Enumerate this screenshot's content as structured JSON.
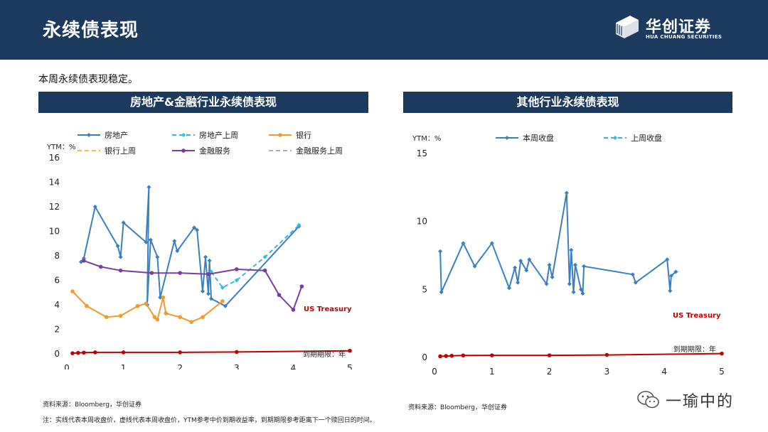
{
  "header": {
    "title": "永续债表现"
  },
  "logo": {
    "name_cn": "华创证券",
    "name_en": "HUA CHUANG SECURITIES"
  },
  "subtitle": "本周永续债表现稳定。",
  "colors": {
    "header_bg": "#1b3a5e",
    "treasury": "#c00000"
  },
  "chart_data": [
    {
      "type": "line",
      "title": "房地产&金融行业永续债表现",
      "ylabel": "YTM：%",
      "xlabel": "到期期限：年",
      "xlim": [
        0,
        5
      ],
      "ylim": [
        0,
        16
      ],
      "xticks": [
        0,
        1,
        2,
        3,
        4,
        5
      ],
      "yticks": [
        0,
        2,
        4,
        6,
        8,
        10,
        12,
        14,
        16
      ],
      "grid": false,
      "legend_position": "top",
      "annotation": "US Treasury",
      "series": [
        {
          "name": "房地产",
          "style": "solid",
          "color": "#3a7fc1",
          "marker": "diamond",
          "points": [
            [
              0.25,
              7.5
            ],
            [
              0.3,
              7.8
            ],
            [
              0.5,
              12.0
            ],
            [
              0.9,
              8.8
            ],
            [
              0.95,
              7.9
            ],
            [
              1.0,
              10.7
            ],
            [
              1.4,
              9.1
            ],
            [
              1.45,
              13.6
            ],
            [
              1.42,
              4.0
            ],
            [
              1.48,
              9.3
            ],
            [
              1.6,
              7.9
            ],
            [
              1.65,
              4.6
            ],
            [
              1.9,
              9.2
            ],
            [
              1.95,
              8.4
            ],
            [
              2.25,
              10.3
            ],
            [
              2.3,
              10.1
            ],
            [
              2.4,
              5.1
            ],
            [
              2.45,
              7.9
            ],
            [
              2.5,
              4.9
            ],
            [
              2.52,
              7.6
            ],
            [
              2.55,
              4.5
            ],
            [
              2.8,
              3.9
            ],
            [
              4.1,
              10.4
            ]
          ]
        },
        {
          "name": "房地产上周",
          "style": "dashed",
          "color": "#39b6e8",
          "marker": "diamond",
          "points": [
            [
              2.55,
              6.7
            ],
            [
              2.75,
              5.4
            ],
            [
              3.0,
              6.0
            ],
            [
              3.5,
              7.9
            ],
            [
              4.1,
              10.5
            ]
          ]
        },
        {
          "name": "银行",
          "style": "solid",
          "color": "#f29a2e",
          "marker": "circle",
          "points": [
            [
              0.1,
              5.1
            ],
            [
              0.35,
              3.9
            ],
            [
              0.7,
              3.0
            ],
            [
              0.95,
              3.1
            ],
            [
              1.25,
              3.9
            ],
            [
              1.4,
              4.1
            ],
            [
              1.55,
              3.0
            ],
            [
              1.6,
              2.8
            ],
            [
              1.7,
              4.6
            ],
            [
              1.75,
              3.3
            ],
            [
              2.0,
              3.0
            ],
            [
              2.2,
              2.6
            ],
            [
              2.4,
              3.0
            ],
            [
              2.75,
              4.3
            ]
          ]
        },
        {
          "name": "银行上周",
          "style": "dashed",
          "color": "#f7c325",
          "marker": "none",
          "points": []
        },
        {
          "name": "金融服务",
          "style": "solid",
          "color": "#7a3ea0",
          "marker": "circle",
          "points": [
            [
              0.3,
              7.6
            ],
            [
              0.6,
              7.1
            ],
            [
              0.95,
              6.8
            ],
            [
              1.5,
              6.6
            ],
            [
              2.0,
              6.6
            ],
            [
              2.5,
              6.5
            ],
            [
              3.0,
              6.9
            ],
            [
              3.5,
              6.8
            ],
            [
              3.75,
              4.8
            ],
            [
              4.0,
              3.6
            ],
            [
              4.15,
              5.5
            ]
          ]
        },
        {
          "name": "金融服务上周",
          "style": "dashed",
          "color": "#b0b0b0",
          "marker": "none",
          "points": []
        },
        {
          "name": "",
          "style": "solid",
          "color": "#c00000",
          "marker": "circle",
          "legend": false,
          "points": [
            [
              0.1,
              0.05
            ],
            [
              0.2,
              0.08
            ],
            [
              0.3,
              0.1
            ],
            [
              0.5,
              0.12
            ],
            [
              1.0,
              0.12
            ],
            [
              2.0,
              0.12
            ],
            [
              3.0,
              0.15
            ],
            [
              5.0,
              0.25
            ]
          ]
        }
      ]
    },
    {
      "type": "line",
      "title": "其他行业永续债表现",
      "ylabel": "YTM：%",
      "xlabel": "到期期限：年",
      "xlim": [
        0,
        5
      ],
      "ylim": [
        0,
        15
      ],
      "xticks": [
        0,
        1,
        2,
        3,
        4,
        5
      ],
      "yticks": [
        0,
        5,
        10,
        15
      ],
      "grid": false,
      "legend_position": "top",
      "annotation": "US Treasury",
      "series": [
        {
          "name": "本周收盘",
          "style": "solid",
          "color": "#3a7fc1",
          "marker": "diamond",
          "points": [
            [
              0.1,
              7.8
            ],
            [
              0.12,
              4.8
            ],
            [
              0.5,
              8.4
            ],
            [
              0.7,
              6.7
            ],
            [
              1.0,
              8.4
            ],
            [
              1.3,
              5.1
            ],
            [
              1.4,
              6.6
            ],
            [
              1.45,
              5.5
            ],
            [
              1.5,
              7.1
            ],
            [
              1.6,
              6.4
            ],
            [
              1.65,
              7.2
            ],
            [
              1.95,
              5.4
            ],
            [
              2.0,
              6.8
            ],
            [
              2.05,
              5.9
            ],
            [
              2.3,
              12.1
            ],
            [
              2.35,
              5.4
            ],
            [
              2.38,
              7.9
            ],
            [
              2.42,
              4.8
            ],
            [
              2.45,
              6.8
            ],
            [
              2.55,
              5.0
            ],
            [
              2.58,
              4.7
            ],
            [
              2.6,
              6.7
            ],
            [
              3.45,
              6.1
            ],
            [
              3.5,
              5.5
            ],
            [
              4.05,
              7.2
            ],
            [
              4.1,
              4.9
            ],
            [
              4.12,
              6.0
            ],
            [
              4.2,
              6.3
            ]
          ]
        },
        {
          "name": "上周收盘",
          "style": "dashed",
          "color": "#39b6e8",
          "marker": "diamond",
          "points": []
        },
        {
          "name": "",
          "style": "solid",
          "color": "#c00000",
          "marker": "circle",
          "legend": false,
          "points": [
            [
              0.1,
              0.08
            ],
            [
              0.2,
              0.1
            ],
            [
              0.3,
              0.12
            ],
            [
              0.5,
              0.14
            ],
            [
              1.0,
              0.15
            ],
            [
              2.0,
              0.15
            ],
            [
              3.0,
              0.18
            ],
            [
              5.0,
              0.28
            ]
          ]
        }
      ]
    }
  ],
  "notes": {
    "left_source": "资料来源：Bloomberg，华创证券",
    "right_source": "资料来源：Bloomberg，华创证券",
    "footnote": "注：实线代表本周收盘价，虚线代表本周收盘价，YTM参考中价到期收益率，到期期限参考距离下一个赎回日的时间。"
  },
  "watermark": {
    "text": "一瑜中的",
    "icon": "wechat-icon"
  }
}
